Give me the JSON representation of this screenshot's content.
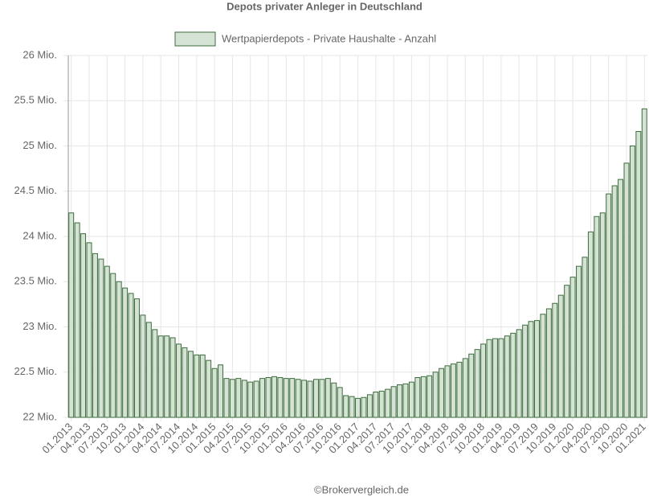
{
  "chart_data": {
    "type": "bar",
    "title": "Depots privater Anleger in Deutschland",
    "source": "©Brokervergleich.de",
    "categories": [
      "01.2013",
      null,
      null,
      "04.2013",
      null,
      null,
      "07.2013",
      null,
      null,
      "10.2013",
      null,
      null,
      "01.2014",
      null,
      null,
      "04.2014",
      null,
      null,
      "07.2014",
      null,
      null,
      "10.2014",
      null,
      null,
      "01.2015",
      null,
      null,
      "04.2015",
      null,
      null,
      "07.2015",
      null,
      null,
      "10.2015",
      null,
      null,
      "01.2016",
      null,
      null,
      "04.2016",
      null,
      null,
      "07.2016",
      null,
      null,
      "10.2016",
      null,
      null,
      "01.2017",
      null,
      null,
      "04.2017",
      null,
      null,
      "07.2017",
      null,
      null,
      "10.2017",
      null,
      null,
      "01.2018",
      null,
      null,
      "04.2018",
      null,
      null,
      "07.2018",
      null,
      null,
      "10.2018",
      null,
      null,
      "01.2019",
      null,
      null,
      "04.2019",
      null,
      null,
      "07.2019",
      null,
      null,
      "10.2019",
      null,
      null,
      "01.2020",
      null,
      null,
      "04.2020",
      null,
      null,
      "07.2020",
      null,
      null,
      "10.2020",
      null,
      null,
      "01.2021"
    ],
    "series": [
      {
        "name": "Wertpapierdepots - Private Haushalte - Anzahl",
        "color": "#d5e3d5",
        "border_color": "#3d6b3d",
        "values": [
          24.26,
          24.15,
          24.03,
          23.93,
          23.81,
          23.75,
          23.67,
          23.59,
          23.5,
          23.43,
          23.37,
          23.31,
          23.13,
          23.05,
          22.97,
          22.9,
          22.9,
          22.88,
          22.81,
          22.77,
          22.73,
          22.69,
          22.69,
          22.63,
          22.54,
          22.58,
          22.43,
          22.42,
          22.43,
          22.41,
          22.39,
          22.4,
          22.43,
          22.44,
          22.45,
          22.44,
          22.43,
          22.43,
          22.42,
          22.41,
          22.4,
          22.42,
          22.42,
          22.43,
          22.38,
          22.33,
          22.24,
          22.23,
          22.21,
          22.22,
          22.25,
          22.28,
          22.29,
          22.31,
          22.34,
          22.36,
          22.37,
          22.39,
          22.44,
          22.45,
          22.46,
          22.5,
          22.54,
          22.57,
          22.59,
          22.61,
          22.65,
          22.7,
          22.75,
          22.81,
          22.86,
          22.87,
          22.87,
          22.9,
          22.93,
          22.97,
          23.02,
          23.06,
          23.07,
          23.14,
          23.2,
          23.26,
          23.35,
          23.46,
          23.55,
          23.67,
          23.77,
          24.05,
          24.22,
          24.26,
          24.47,
          24.56,
          24.63,
          24.81,
          25.0,
          25.16,
          25.41
        ]
      }
    ],
    "ylim": [
      22,
      26
    ],
    "yticks": [
      {
        "value": 22,
        "label": "22 Mio."
      },
      {
        "value": 22.5,
        "label": "22.5 Mio."
      },
      {
        "value": 23,
        "label": "23 Mio."
      },
      {
        "value": 23.5,
        "label": "23.5 Mio."
      },
      {
        "value": 24,
        "label": "24 Mio."
      },
      {
        "value": 24.5,
        "label": "24.5 Mio."
      },
      {
        "value": 25,
        "label": "25 Mio."
      },
      {
        "value": 25.5,
        "label": "25.5 Mio."
      },
      {
        "value": 26,
        "label": "26 Mio."
      }
    ],
    "grid": true
  }
}
